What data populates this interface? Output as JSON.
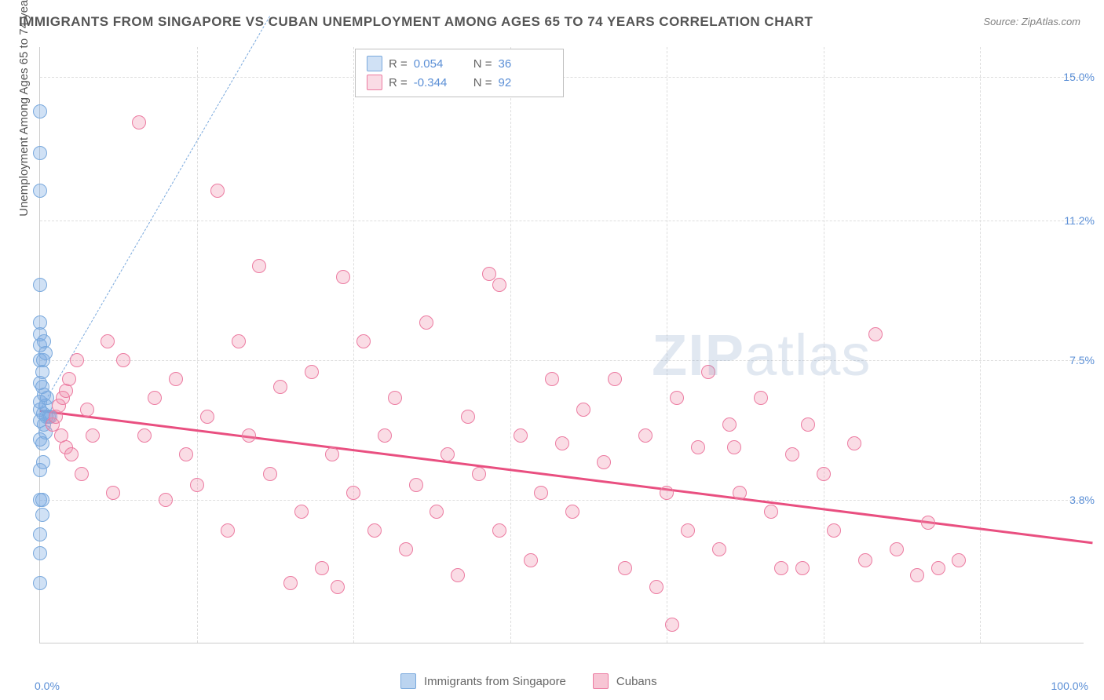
{
  "title": "IMMIGRANTS FROM SINGAPORE VS CUBAN UNEMPLOYMENT AMONG AGES 65 TO 74 YEARS CORRELATION CHART",
  "source": "Source: ZipAtlas.com",
  "y_axis_label": "Unemployment Among Ages 65 to 74 years",
  "watermark_bold": "ZIP",
  "watermark_rest": "atlas",
  "chart": {
    "type": "scatter",
    "xlim": [
      0,
      100
    ],
    "ylim": [
      0,
      15.8
    ],
    "x_ticks": [
      {
        "v": 0,
        "label": "0.0%"
      },
      {
        "v": 100,
        "label": "100.0%"
      }
    ],
    "y_ticks": [
      {
        "v": 3.8,
        "label": "3.8%"
      },
      {
        "v": 7.5,
        "label": "7.5%"
      },
      {
        "v": 11.2,
        "label": "11.2%"
      },
      {
        "v": 15.0,
        "label": "15.0%"
      }
    ],
    "x_grid_positions": [
      15,
      30,
      45,
      60,
      75,
      90
    ],
    "background_color": "#ffffff",
    "grid_color": "#dddddd",
    "series": [
      {
        "name": "Immigrants from Singapore",
        "fill": "rgba(120,170,225,0.35)",
        "stroke": "#7aa9dd",
        "r_label": "R =",
        "r_value": "0.054",
        "n_label": "N =",
        "n_value": "36",
        "marker_radius": 9,
        "trend": {
          "dashed": true,
          "color": "#7aa9dd",
          "width": 1.5,
          "y_at_x0": 6.2,
          "y_at_x100": 7.0,
          "draw_extent_x": 22,
          "draw_to_top": true
        },
        "points": [
          [
            0.0,
            1.6
          ],
          [
            0.0,
            2.4
          ],
          [
            0.0,
            2.9
          ],
          [
            0.2,
            3.4
          ],
          [
            0.0,
            3.8
          ],
          [
            0.2,
            3.8
          ],
          [
            0.0,
            4.6
          ],
          [
            0.3,
            4.8
          ],
          [
            0.2,
            5.3
          ],
          [
            0.0,
            5.4
          ],
          [
            0.5,
            5.6
          ],
          [
            0.4,
            5.8
          ],
          [
            0.0,
            5.9
          ],
          [
            0.6,
            6.0
          ],
          [
            0.3,
            6.1
          ],
          [
            0.0,
            6.2
          ],
          [
            0.8,
            6.0
          ],
          [
            0.5,
            6.3
          ],
          [
            0.0,
            6.4
          ],
          [
            1.0,
            6.0
          ],
          [
            0.4,
            6.6
          ],
          [
            0.2,
            6.8
          ],
          [
            0.0,
            6.9
          ],
          [
            0.7,
            6.5
          ],
          [
            0.0,
            7.5
          ],
          [
            0.3,
            7.5
          ],
          [
            0.0,
            7.9
          ],
          [
            0.5,
            7.7
          ],
          [
            0.0,
            8.2
          ],
          [
            0.0,
            8.5
          ],
          [
            0.0,
            9.5
          ],
          [
            0.0,
            12.0
          ],
          [
            0.0,
            13.0
          ],
          [
            0.0,
            14.1
          ],
          [
            0.4,
            8.0
          ],
          [
            0.2,
            7.2
          ]
        ]
      },
      {
        "name": "Cubans",
        "fill": "rgba(240,140,170,0.30)",
        "stroke": "#ec7ba1",
        "r_label": "R =",
        "r_value": "-0.344",
        "n_label": "N =",
        "n_value": "92",
        "marker_radius": 9,
        "trend": {
          "dashed": false,
          "color": "#e94f80",
          "width": 3,
          "y_at_x0": 6.2,
          "y_at_x100": 2.7
        },
        "points": [
          [
            1.2,
            5.8
          ],
          [
            1.5,
            6.0
          ],
          [
            1.8,
            6.3
          ],
          [
            2.0,
            5.5
          ],
          [
            2.2,
            6.5
          ],
          [
            2.5,
            5.2
          ],
          [
            2.5,
            6.7
          ],
          [
            2.8,
            7.0
          ],
          [
            3.0,
            5.0
          ],
          [
            3.5,
            7.5
          ],
          [
            4.0,
            4.5
          ],
          [
            4.5,
            6.2
          ],
          [
            5.0,
            5.5
          ],
          [
            6.5,
            8.0
          ],
          [
            7.0,
            4.0
          ],
          [
            8.0,
            7.5
          ],
          [
            9.5,
            13.8
          ],
          [
            10.0,
            5.5
          ],
          [
            11.0,
            6.5
          ],
          [
            12.0,
            3.8
          ],
          [
            13.0,
            7.0
          ],
          [
            14.0,
            5.0
          ],
          [
            15.0,
            4.2
          ],
          [
            16.0,
            6.0
          ],
          [
            17.0,
            12.0
          ],
          [
            18.0,
            3.0
          ],
          [
            19.0,
            8.0
          ],
          [
            20.0,
            5.5
          ],
          [
            21.0,
            10.0
          ],
          [
            22.0,
            4.5
          ],
          [
            23.0,
            6.8
          ],
          [
            24.0,
            1.6
          ],
          [
            25.0,
            3.5
          ],
          [
            26.0,
            7.2
          ],
          [
            27.0,
            2.0
          ],
          [
            28.0,
            5.0
          ],
          [
            28.5,
            1.5
          ],
          [
            29.0,
            9.7
          ],
          [
            30.0,
            4.0
          ],
          [
            31.0,
            8.0
          ],
          [
            32.0,
            3.0
          ],
          [
            33.0,
            5.5
          ],
          [
            34.0,
            6.5
          ],
          [
            35.0,
            2.5
          ],
          [
            36.0,
            4.2
          ],
          [
            37.0,
            8.5
          ],
          [
            38.0,
            3.5
          ],
          [
            39.0,
            5.0
          ],
          [
            40.0,
            1.8
          ],
          [
            41.0,
            6.0
          ],
          [
            42.0,
            4.5
          ],
          [
            43.0,
            9.8
          ],
          [
            44.0,
            9.5
          ],
          [
            44.0,
            3.0
          ],
          [
            46.0,
            5.5
          ],
          [
            47.0,
            2.2
          ],
          [
            48.0,
            4.0
          ],
          [
            49.0,
            7.0
          ],
          [
            50.0,
            5.3
          ],
          [
            51.0,
            3.5
          ],
          [
            52.0,
            6.2
          ],
          [
            54.0,
            4.8
          ],
          [
            55.0,
            7.0
          ],
          [
            56.0,
            2.0
          ],
          [
            58.0,
            5.5
          ],
          [
            59.0,
            1.5
          ],
          [
            60.0,
            4.0
          ],
          [
            61.0,
            6.5
          ],
          [
            62.0,
            3.0
          ],
          [
            63.0,
            5.2
          ],
          [
            64.0,
            7.2
          ],
          [
            65.0,
            2.5
          ],
          [
            66.0,
            5.8
          ],
          [
            67.0,
            4.0
          ],
          [
            69.0,
            6.5
          ],
          [
            70.0,
            3.5
          ],
          [
            72.0,
            5.0
          ],
          [
            73.0,
            2.0
          ],
          [
            75.0,
            4.5
          ],
          [
            76.0,
            3.0
          ],
          [
            78.0,
            5.3
          ],
          [
            79.0,
            2.2
          ],
          [
            80.0,
            8.2
          ],
          [
            84.0,
            1.8
          ],
          [
            85.0,
            3.2
          ],
          [
            86.0,
            2.0
          ],
          [
            88.0,
            2.2
          ],
          [
            60.5,
            0.5
          ],
          [
            73.5,
            5.8
          ],
          [
            66.5,
            5.2
          ],
          [
            71.0,
            2.0
          ],
          [
            82.0,
            2.5
          ]
        ]
      }
    ]
  },
  "legend_bottom": [
    {
      "label": "Immigrants from Singapore",
      "fill": "rgba(120,170,225,0.5)",
      "stroke": "#7aa9dd"
    },
    {
      "label": "Cubans",
      "fill": "rgba(240,140,170,0.5)",
      "stroke": "#ec7ba1"
    }
  ]
}
